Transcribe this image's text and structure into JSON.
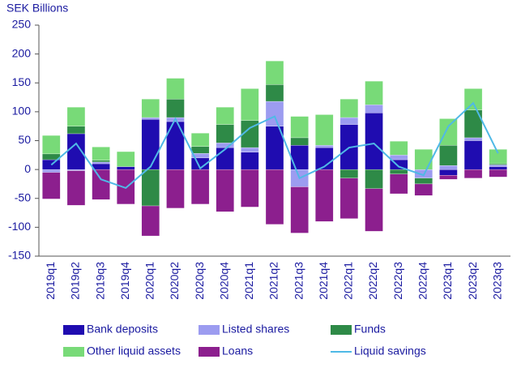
{
  "chart_data": {
    "type": "bar",
    "stacked": true,
    "y_axis_label": "SEK Billions",
    "categories": [
      "2019q1",
      "2019q2",
      "2019q3",
      "2019q4",
      "2020q1",
      "2020q2",
      "2020q3",
      "2020q4",
      "2021q1",
      "2021q2",
      "2021q3",
      "2021q4",
      "2022q1",
      "2022q2",
      "2022q3",
      "2022q4",
      "2023q1",
      "2023q2",
      "2023q3"
    ],
    "series": [
      {
        "name": "Bank deposits",
        "color": "#1f0cb0",
        "values": [
          17,
          62,
          10,
          5,
          87,
          83,
          20,
          38,
          30,
          75,
          42,
          38,
          78,
          98,
          17,
          0,
          -10,
          50,
          5
        ]
      },
      {
        "name": "Listed shares",
        "color": "#9c9cf0",
        "values": [
          -5,
          -2,
          3,
          0,
          3,
          7,
          8,
          8,
          8,
          43,
          -30,
          4,
          12,
          14,
          8,
          -15,
          7,
          5,
          3
        ]
      },
      {
        "name": "Funds",
        "color": "#2e8a47",
        "values": [
          10,
          13,
          3,
          0,
          -63,
          32,
          12,
          32,
          47,
          29,
          13,
          0,
          -15,
          -33,
          -8,
          -10,
          35,
          48,
          2
        ]
      },
      {
        "name": "Other liquid assets",
        "color": "#78da78",
        "values": [
          32,
          33,
          23,
          26,
          32,
          36,
          23,
          30,
          55,
          41,
          37,
          53,
          32,
          41,
          24,
          35,
          46,
          37,
          25
        ]
      },
      {
        "name": "Loans",
        "color": "#8c1f8e",
        "values": [
          -46,
          -60,
          -52,
          -60,
          -52,
          -67,
          -60,
          -73,
          -65,
          -95,
          -80,
          -90,
          -70,
          -74,
          -34,
          -20,
          -7,
          -15,
          -13
        ]
      },
      {
        "name": "Liquid savings",
        "type": "line",
        "color": "#4fb9e6",
        "values": [
          8,
          45,
          -17,
          -32,
          5,
          88,
          2,
          35,
          72,
          92,
          -15,
          5,
          38,
          45,
          5,
          -10,
          75,
          115,
          28
        ]
      }
    ],
    "ylim": [
      -150,
      250
    ],
    "yticks": [
      -150,
      -100,
      -50,
      0,
      50,
      100,
      150,
      200,
      250
    ],
    "grid": false
  }
}
